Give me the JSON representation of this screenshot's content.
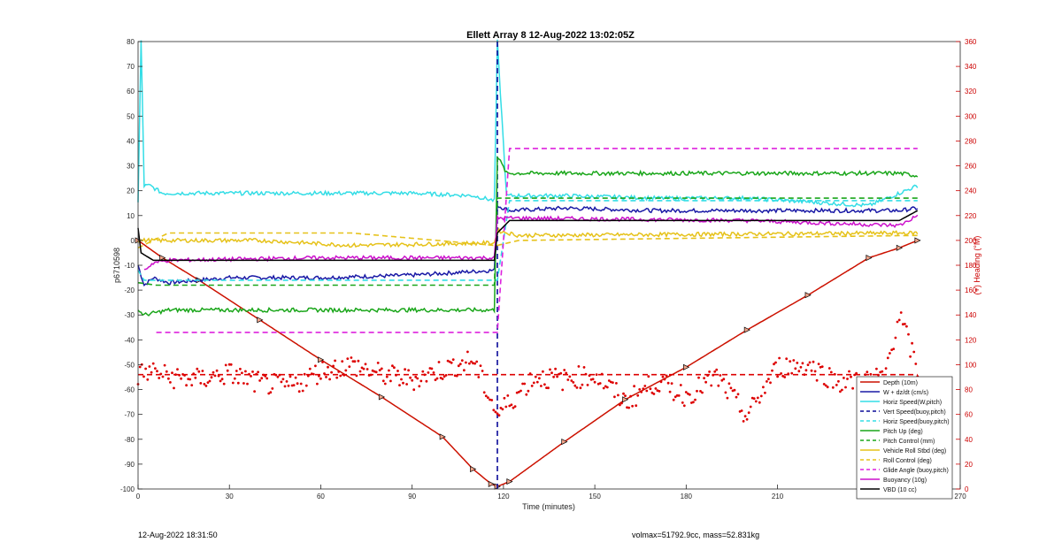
{
  "chart_data": {
    "type": "line",
    "title": "Ellett Array 8 12-Aug-2022 13:02:05Z",
    "xlabel": "Time (minutes)",
    "ylabel_left": "p6710598",
    "ylabel_right": "(+) Heading (°M)",
    "xlim": [
      0,
      270
    ],
    "ylim_left": [
      -100,
      80
    ],
    "ylim_right": [
      0,
      360
    ],
    "x_ticks": [
      "0",
      "30",
      "60",
      "90",
      "120",
      "150",
      "180",
      "210",
      "240",
      "270"
    ],
    "y_ticks_left": [
      "80",
      "70",
      "60",
      "50",
      "40",
      "30",
      "20",
      "10",
      "0",
      "-10",
      "-20",
      "-30",
      "-40",
      "-50",
      "-60",
      "-70",
      "-80",
      "-90",
      "-100"
    ],
    "y_ticks_right": [
      "360",
      "340",
      "320",
      "300",
      "280",
      "260",
      "240",
      "220",
      "200",
      "180",
      "160",
      "140",
      "120",
      "100",
      "80",
      "60",
      "40",
      "20",
      "0"
    ],
    "apogee_time": 118,
    "legend_position": "bottom-right",
    "series": [
      {
        "name": "Depth (10m)",
        "color": "#cc1100",
        "style": "solid-markers",
        "x": [
          0,
          8,
          20,
          40,
          60,
          80,
          100,
          110,
          116,
          118,
          122,
          140,
          160,
          180,
          200,
          220,
          240,
          250,
          256
        ],
        "y": [
          0,
          -7,
          -16,
          -32,
          -48,
          -63,
          -79,
          -92,
          -98,
          -99,
          -97,
          -81,
          -64,
          -51,
          -36,
          -22,
          -7,
          -3,
          0
        ]
      },
      {
        "name": "W + dz/dt (cm/s)",
        "color": "#1a1aa6",
        "style": "solid",
        "x": [
          0,
          2,
          5,
          10,
          30,
          60,
          90,
          117,
          118,
          122,
          140,
          170,
          200,
          230,
          250,
          256
        ],
        "y": [
          -10,
          -18,
          -15,
          -17,
          -15,
          -15,
          -14,
          -12,
          14,
          12,
          13,
          12,
          12,
          12,
          12,
          13
        ]
      },
      {
        "name": "Horiz Speed(W,pitch)",
        "color": "#33dde6",
        "style": "solid",
        "x": [
          0,
          1,
          2,
          4,
          8,
          20,
          50,
          90,
          110,
          117,
          118,
          121,
          140,
          170,
          200,
          240,
          256
        ],
        "y": [
          15,
          80,
          22,
          22,
          19,
          19,
          19,
          19,
          18,
          16,
          80,
          18,
          18,
          17,
          17,
          14,
          22
        ]
      },
      {
        "name": "Vert Speed(buoy,pitch)",
        "color": "#0a0a99",
        "style": "dashed",
        "x": [
          118,
          118
        ],
        "y": [
          -100,
          80
        ]
      },
      {
        "name": "Horiz Speed(buoy,pitch)",
        "color": "#33dde6",
        "style": "dashed",
        "x": [
          0,
          2,
          118,
          122,
          256
        ],
        "y": [
          -12,
          -16,
          -16,
          16,
          16
        ]
      },
      {
        "name": "Pitch Up (deg)",
        "color": "#1aa61a",
        "style": "solid",
        "x": [
          0,
          2,
          10,
          60,
          117,
          118,
          121,
          140,
          200,
          250,
          256
        ],
        "y": [
          -28,
          -30,
          -28,
          -28,
          -28,
          34,
          27,
          27,
          27,
          27,
          26
        ]
      },
      {
        "name": "Pitch Control (mm)",
        "color": "#1aa61a",
        "style": "dashed",
        "x": [
          0,
          6,
          117,
          118,
          122,
          256
        ],
        "y": [
          -17,
          -18,
          -18,
          17,
          17,
          17
        ]
      },
      {
        "name": "Vehicle Roll Stbd (deg)",
        "color": "#e6c21a",
        "style": "solid",
        "x": [
          0,
          10,
          40,
          70,
          117,
          118,
          125,
          256
        ],
        "y": [
          0,
          0,
          0,
          -2,
          -1,
          4,
          2,
          3
        ]
      },
      {
        "name": "Roll Control (deg)",
        "color": "#e6c21a",
        "style": "dashed",
        "x": [
          0,
          10,
          70,
          117,
          118,
          125,
          256
        ],
        "y": [
          -3,
          3,
          3,
          -2,
          -2,
          0,
          2
        ]
      },
      {
        "name": "Glide Angle (buoy,pitch)",
        "color": "#dd22dd",
        "style": "dashed",
        "x": [
          6,
          8,
          118,
          122,
          256
        ],
        "y": [
          -37,
          -37,
          -37,
          37,
          37
        ]
      },
      {
        "name": "Buoyancy (10g)",
        "color": "#cc11cc",
        "style": "solid",
        "x": [
          2,
          5,
          10,
          60,
          117,
          118,
          122,
          200,
          250,
          256
        ],
        "y": [
          -12,
          -9,
          -8,
          -7,
          -7,
          9,
          9,
          8,
          6,
          10
        ]
      },
      {
        "name": "VBD (10 cc)",
        "color": "#000000",
        "style": "solid",
        "x": [
          0,
          1,
          5,
          117,
          118,
          122,
          250,
          256
        ],
        "y": [
          5,
          -5,
          -8,
          -8,
          3,
          8,
          8,
          12
        ]
      },
      {
        "name": "Heading",
        "axis": "right",
        "color": "#dd0000",
        "style": "dotted",
        "x": [
          0,
          5,
          10,
          20,
          30,
          40,
          50,
          60,
          70,
          80,
          90,
          100,
          110,
          118,
          122,
          130,
          140,
          150,
          160,
          170,
          180,
          190,
          200,
          210,
          220,
          230,
          240,
          245,
          250,
          256
        ],
        "y": [
          92,
          95,
          90,
          88,
          93,
          85,
          82,
          95,
          100,
          92,
          88,
          96,
          104,
          60,
          70,
          90,
          88,
          92,
          70,
          86,
          75,
          90,
          58,
          98,
          100,
          86,
          88,
          90,
          140,
          96
        ]
      },
      {
        "name": "Heading mean",
        "axis": "right",
        "color": "#dd0000",
        "style": "dashed",
        "x": [
          0,
          256
        ],
        "y": [
          92,
          92
        ]
      }
    ]
  },
  "footer": {
    "left": "12-Aug-2022 18:31:50",
    "right": "volmax=51792.9cc, mass=52.831kg"
  }
}
